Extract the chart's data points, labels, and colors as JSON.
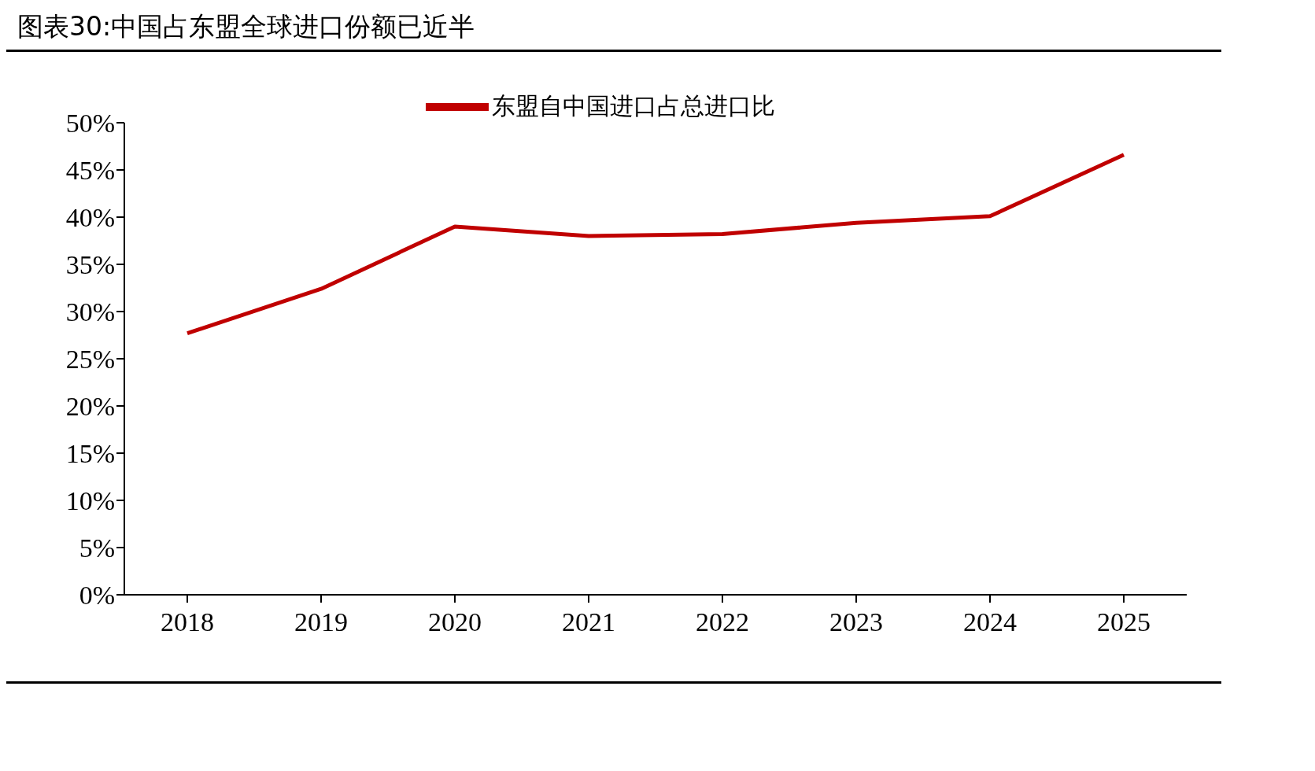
{
  "chart_data": {
    "type": "line",
    "title": "图表30:中国占东盟全球进口份额已近半",
    "categories": [
      "2018",
      "2019",
      "2020",
      "2021",
      "2022",
      "2023",
      "2024",
      "2025"
    ],
    "series": [
      {
        "name": "东盟自中国进口占总进口比",
        "color": "#c00000",
        "values": [
          27.7,
          32.4,
          39.0,
          38.0,
          38.2,
          39.4,
          40.1,
          46.6
        ]
      }
    ],
    "ylim": [
      0,
      50
    ],
    "yticks": [
      {
        "value": 0,
        "label": "0%"
      },
      {
        "value": 5,
        "label": "5%"
      },
      {
        "value": 10,
        "label": "10%"
      },
      {
        "value": 15,
        "label": "15%"
      },
      {
        "value": 20,
        "label": "20%"
      },
      {
        "value": 25,
        "label": "25%"
      },
      {
        "value": 30,
        "label": "30%"
      },
      {
        "value": 35,
        "label": "35%"
      },
      {
        "value": 40,
        "label": "40%"
      },
      {
        "value": 45,
        "label": "45%"
      },
      {
        "value": 50,
        "label": "50%"
      }
    ],
    "grid": false,
    "legend": "top",
    "marker": "none",
    "line_style": "solid"
  }
}
